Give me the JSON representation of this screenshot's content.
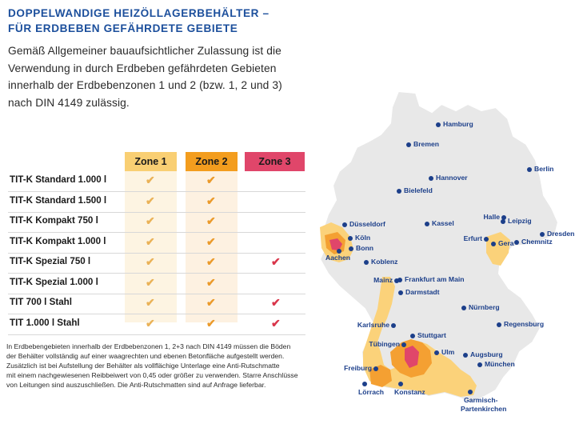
{
  "title": {
    "line1": "DOPPELWANDIGE HEIZÖLLAGERBEHÄLTER –",
    "line2": "FÜR ERDBEBEN GEFÄHRDETE GEBIETE"
  },
  "intro": {
    "line1": "Gemäß Allgemeiner bauaufsichtlicher Zulassung ist die",
    "line2": "Verwendung in durch Erdbeben gefährdeten Gebieten",
    "line3": "innerhalb der Erdbebenzonen 1 und 2 (bzw. 1, 2 und 3)",
    "line4": "nach DIN 4149 zulässig."
  },
  "table": {
    "zones": [
      "Zone 1",
      "Zone 2",
      "Zone 3"
    ],
    "zone_colors": [
      "#f9cf73",
      "#f39d1e",
      "#e0466a"
    ],
    "check_glyph": "✔",
    "rows": [
      {
        "label": "TIT-K Standard 1.000 l",
        "z1": true,
        "z2": true,
        "z3": false
      },
      {
        "label": "TIT-K Standard 1.500 l",
        "z1": true,
        "z2": true,
        "z3": false
      },
      {
        "label": "TIT-K Kompakt 750 l",
        "z1": true,
        "z2": true,
        "z3": false
      },
      {
        "label": "TIT-K Kompakt 1.000 l",
        "z1": true,
        "z2": true,
        "z3": false
      },
      {
        "label": "TIT-K Spezial 750 l",
        "z1": true,
        "z2": true,
        "z3": true
      },
      {
        "label": "TIT-K Spezial 1.000 l",
        "z1": true,
        "z2": true,
        "z3": false
      },
      {
        "label": "TIT 700 l Stahl",
        "z1": true,
        "z2": true,
        "z3": true
      },
      {
        "label": "TIT 1.000 l Stahl",
        "z1": true,
        "z2": true,
        "z3": true
      }
    ]
  },
  "footnote": {
    "line1": "In Erdbebengebieten innerhalb der Erdbebenzonen 1, 2+3 nach DIN 4149 müssen die Böden",
    "line2": "der Behälter vollständig auf einer waagrechten und ebenen Betonfläche aufgestellt werden.",
    "line3": "Zusätzlich ist bei Aufstellung der Behälter als vollflächige Unterlage eine Anti-Rutschmatte",
    "line4": "mit einem nachgewiesenen Reibbeiwert von 0,45 oder größer zu verwenden. Starre Anschlüsse",
    "line5": "von Leitungen sind auszuschließen. Die Anti-Rutschmatten sind auf Anfrage lieferbar."
  },
  "map": {
    "colors": {
      "land": "#e8e8e8",
      "border": "#ffffff",
      "zone1": "#fbd27a",
      "zone2": "#f4a032",
      "zone3": "#e0466a",
      "city_dot": "#1c3f8a"
    },
    "cities": {
      "hamburg": "Hamburg",
      "bremen": "Bremen",
      "berlin": "Berlin",
      "hannover": "Hannover",
      "bielefeld": "Bielefeld",
      "halle": "Halle",
      "leipzig": "Leipzig",
      "duesseldorf": "Düsseldorf",
      "kassel": "Kassel",
      "dresden": "Dresden",
      "koeln": "Köln",
      "erfurt": "Erfurt",
      "gera": "Gera",
      "chemnitz": "Chemnitz",
      "bonn": "Bonn",
      "aachen": "Aachen",
      "koblenz": "Koblenz",
      "frankfurt": "Frankfurt am Main",
      "mainz": "Mainz",
      "darmstadt": "Darmstadt",
      "nuernberg": "Nürnberg",
      "karlsruhe": "Karlsruhe",
      "regensburg": "Regensburg",
      "stuttgart": "Stuttgart",
      "tuebingen": "Tübingen",
      "ulm": "Ulm",
      "augsburg": "Augsburg",
      "freiburg": "Freiburg",
      "muenchen": "München",
      "loerrach": "Lörrach",
      "konstanz": "Konstanz",
      "garmisch": "Garmisch-",
      "partenkirchen": "Partenkirchen"
    }
  }
}
